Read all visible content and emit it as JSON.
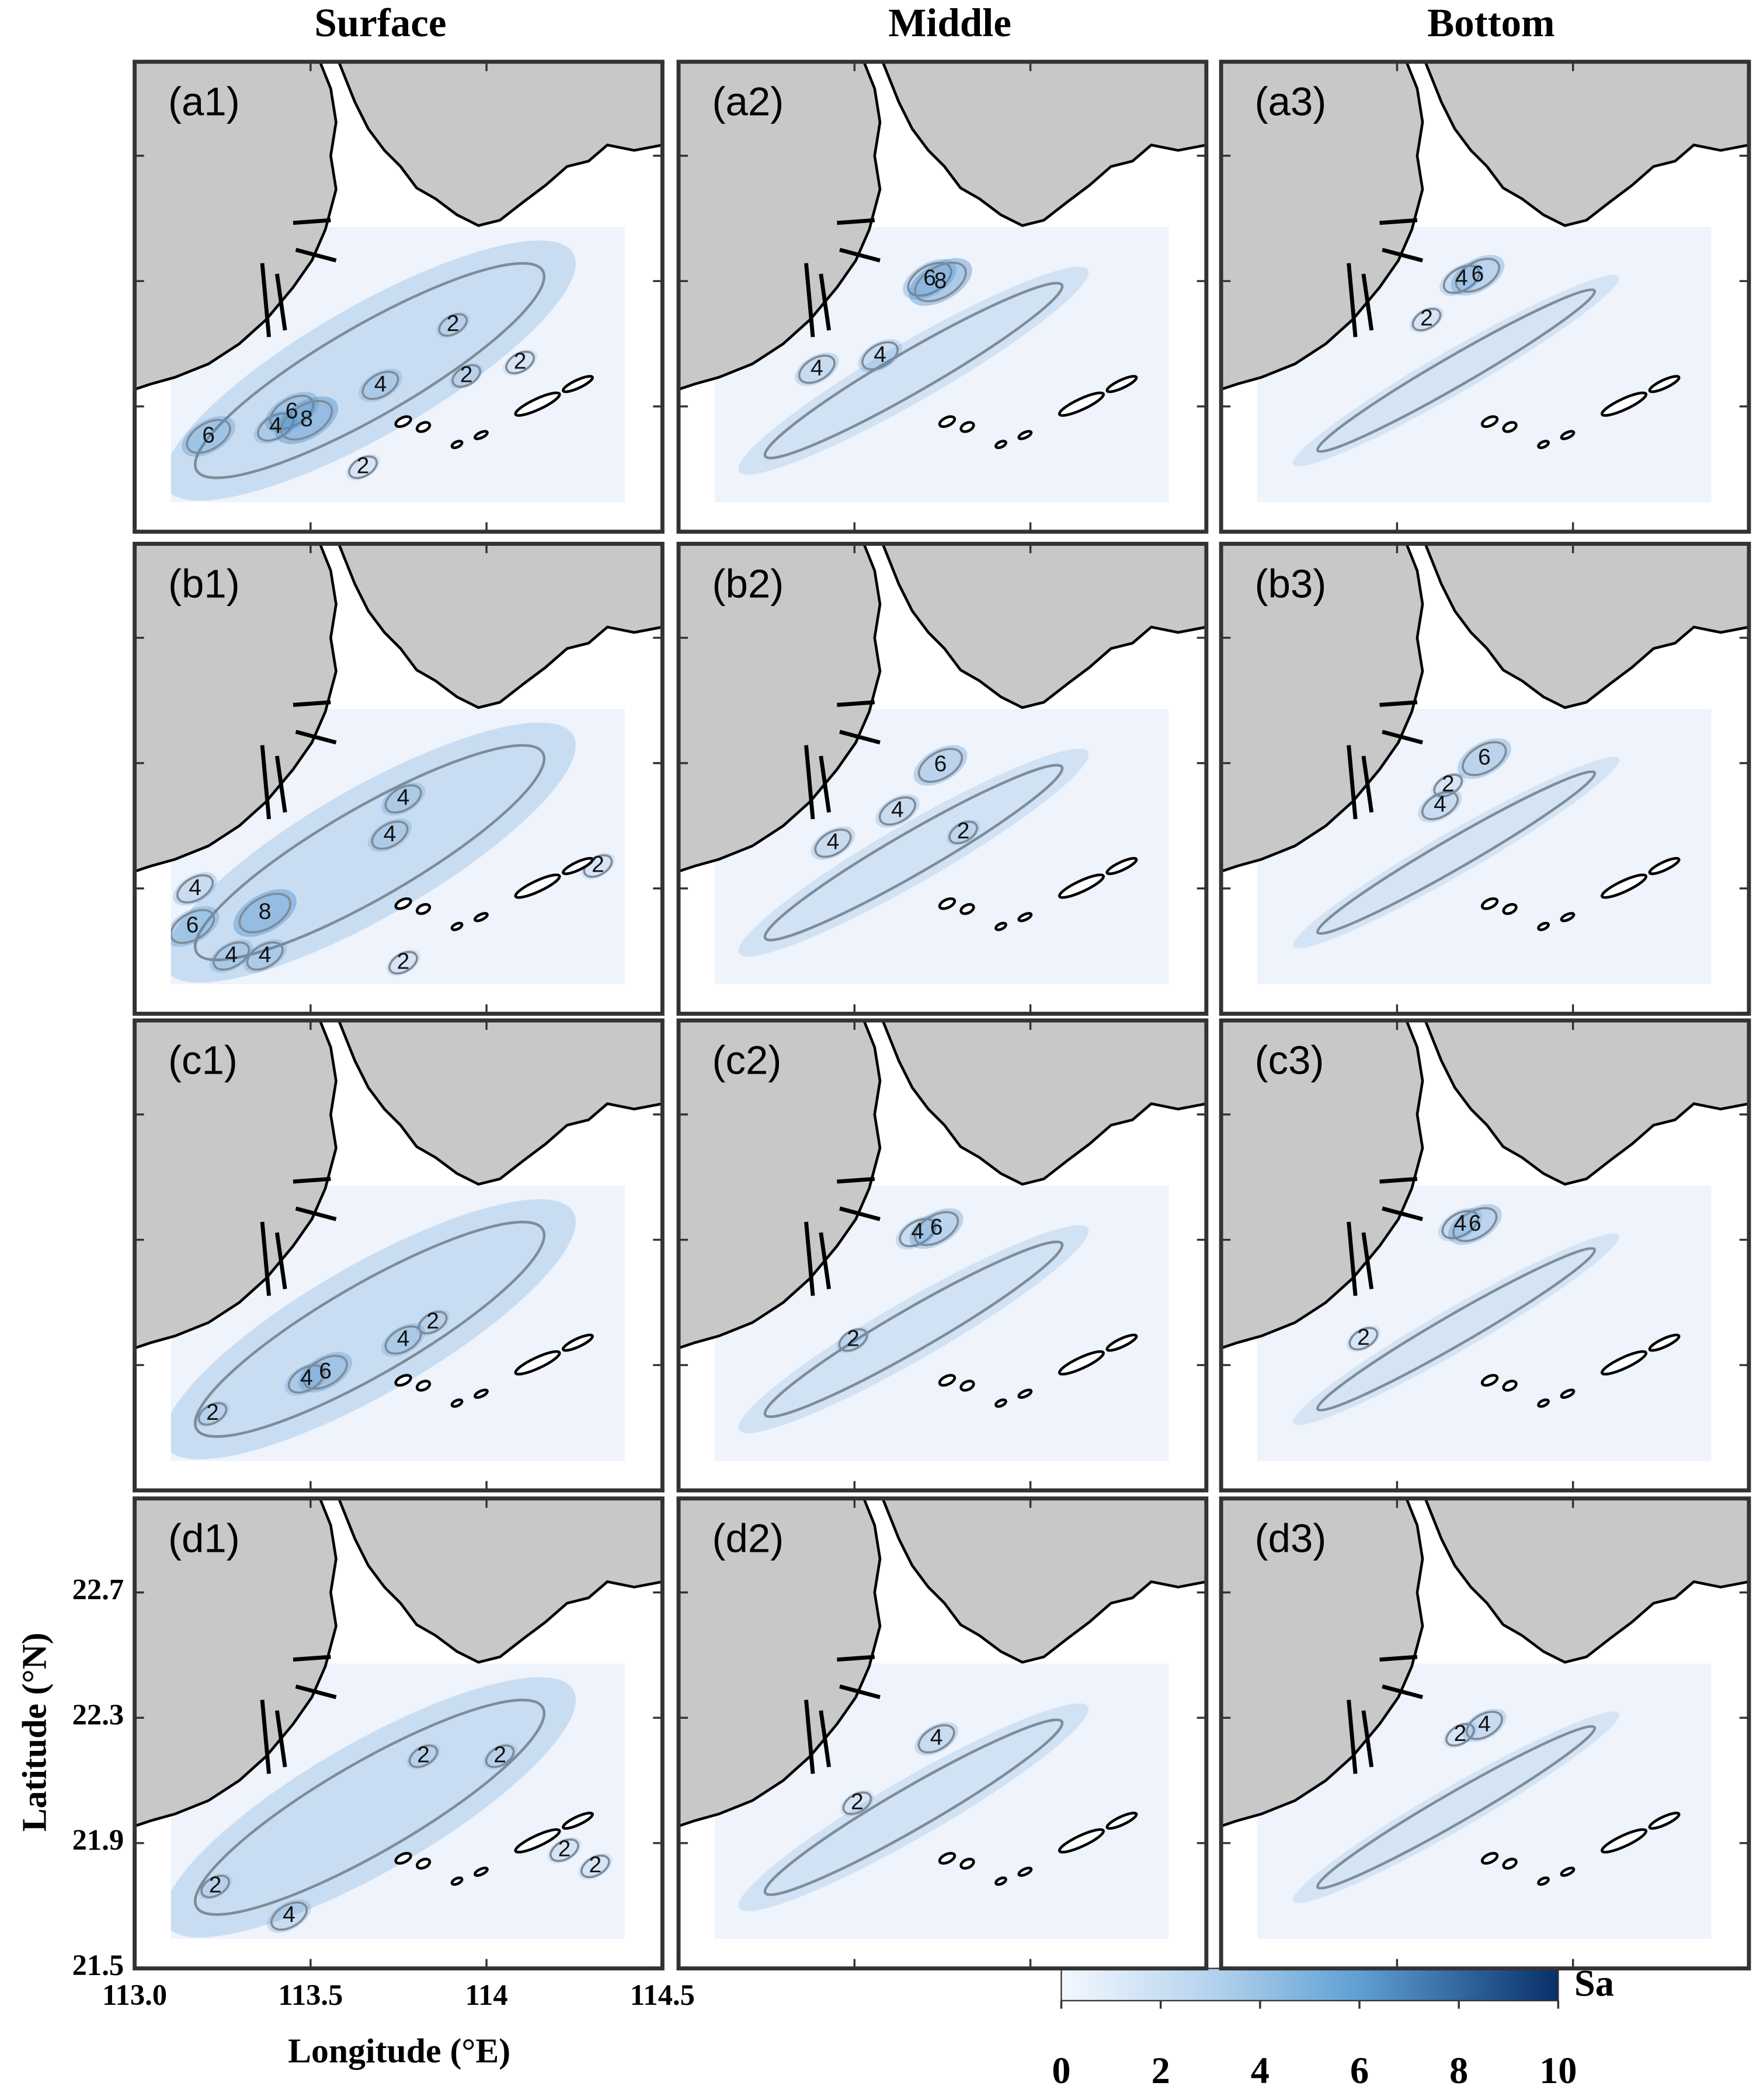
{
  "columns": [
    "Surface",
    "Middle",
    "Bottom"
  ],
  "panels": [
    {
      "label": "(a1)",
      "contour_labels": [
        "6",
        "4",
        "6",
        "8",
        "2",
        "4",
        "2",
        "2",
        "2"
      ]
    },
    {
      "label": "(a2)",
      "contour_labels": [
        "6",
        "8",
        "4",
        "4"
      ]
    },
    {
      "label": "(a3)",
      "contour_labels": [
        "2",
        "4",
        "6"
      ]
    },
    {
      "label": "(b1)",
      "contour_labels": [
        "6",
        "4",
        "8",
        "4",
        "4",
        "2",
        "4",
        "2",
        "4"
      ]
    },
    {
      "label": "(b2)",
      "contour_labels": [
        "6",
        "4",
        "4",
        "2"
      ]
    },
    {
      "label": "(b3)",
      "contour_labels": [
        "6",
        "4",
        "2"
      ]
    },
    {
      "label": "(c1)",
      "contour_labels": [
        "6",
        "4",
        "2",
        "2",
        "4"
      ]
    },
    {
      "label": "(c2)",
      "contour_labels": [
        "4",
        "6",
        "2"
      ]
    },
    {
      "label": "(c3)",
      "contour_labels": [
        "4",
        "6",
        "2"
      ]
    },
    {
      "label": "(d1)",
      "contour_labels": [
        "2",
        "4",
        "2",
        "2",
        "2",
        "2"
      ]
    },
    {
      "label": "(d2)",
      "contour_labels": [
        "4",
        "2"
      ]
    },
    {
      "label": "(d3)",
      "contour_labels": [
        "2",
        "4"
      ]
    }
  ],
  "x_axis": {
    "label": "Longitude (°E)",
    "lim": [
      113,
      114.5
    ],
    "ticks": [
      {
        "value": 113,
        "label": "113.0"
      },
      113.5,
      114,
      114.5
    ]
  },
  "y_axis": {
    "label": "Latitude (°N)",
    "lim": [
      21.5,
      23.0
    ],
    "ticks": [
      22.7,
      22.3,
      21.9,
      21.5
    ]
  },
  "colorbar": {
    "label": "Sa",
    "lim": [
      0,
      10
    ],
    "ticks": [
      0,
      2,
      4,
      6,
      8,
      10
    ]
  }
}
